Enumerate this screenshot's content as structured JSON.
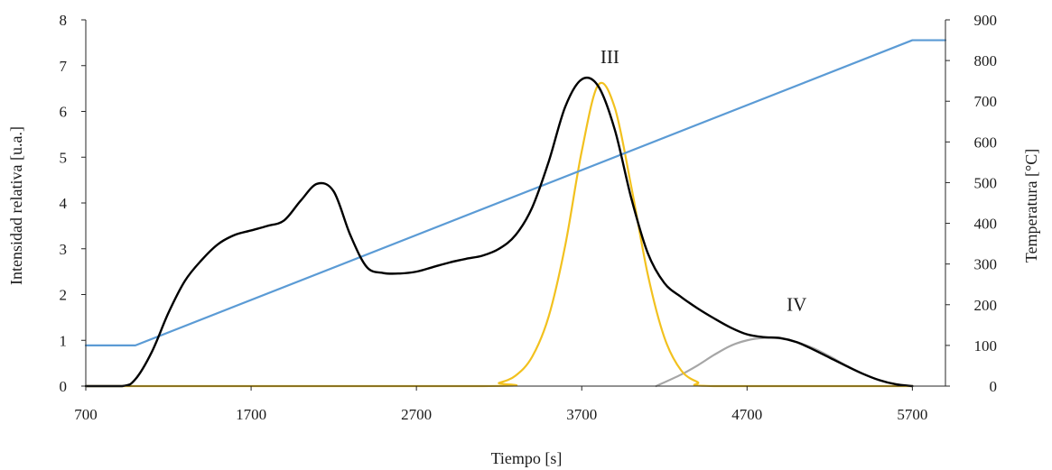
{
  "chart_data": {
    "type": "line",
    "xlabel": "Tiempo [s]",
    "ylabel": "Intensidad relativa  [u.a.]",
    "y2label": "Temperatura [°C]",
    "xlim": [
      700,
      5900
    ],
    "ylim": [
      0,
      8
    ],
    "y2lim": [
      0,
      900
    ],
    "xticks": [
      "700",
      "1700",
      "2700",
      "3700",
      "4700",
      "5700"
    ],
    "yticks": [
      "0",
      "1",
      "2",
      "3",
      "4",
      "5",
      "6",
      "7",
      "8"
    ],
    "y2ticks": [
      "0",
      "100",
      "200",
      "300",
      "400",
      "500",
      "600",
      "700",
      "800",
      "900"
    ],
    "grid": false,
    "legend": "none",
    "annotations": [
      {
        "text": "III",
        "x": 3870,
        "y": 7.05
      },
      {
        "text": "IV",
        "x": 5000,
        "y": 1.65
      }
    ],
    "series": [
      {
        "color": "#000000",
        "axis": "left",
        "x": [
          700,
          920,
          1000,
          1100,
          1200,
          1300,
          1400,
          1500,
          1600,
          1700,
          1800,
          1900,
          2000,
          2100,
          2200,
          2300,
          2400,
          2500,
          2600,
          2700,
          2800,
          2900,
          3000,
          3100,
          3200,
          3300,
          3400,
          3500,
          3600,
          3700,
          3800,
          3900,
          4000,
          4100,
          4200,
          4300,
          4400,
          4500,
          4600,
          4700,
          4800,
          4900,
          5000,
          5100,
          5200,
          5300,
          5400,
          5500,
          5600,
          5700
        ],
        "values": [
          0,
          0,
          0.15,
          0.75,
          1.6,
          2.3,
          2.75,
          3.1,
          3.3,
          3.4,
          3.5,
          3.62,
          4.05,
          4.42,
          4.25,
          3.3,
          2.6,
          2.47,
          2.46,
          2.5,
          2.6,
          2.7,
          2.78,
          2.85,
          3.0,
          3.3,
          3.9,
          4.9,
          6.1,
          6.7,
          6.55,
          5.6,
          4.1,
          2.9,
          2.25,
          1.95,
          1.7,
          1.48,
          1.28,
          1.13,
          1.07,
          1.05,
          0.96,
          0.8,
          0.62,
          0.44,
          0.27,
          0.13,
          0.04,
          0.0
        ]
      },
      {
        "color": "#f2c11e",
        "axis": "left",
        "x": [
          700,
          3100,
          3200,
          3300,
          3400,
          3500,
          3600,
          3700,
          3800,
          3900,
          4000,
          4100,
          4200,
          4300,
          4400,
          4500,
          5700
        ],
        "values": [
          0,
          0.0,
          0.07,
          0.23,
          0.64,
          1.52,
          3.07,
          5.13,
          6.58,
          6.08,
          4.35,
          2.43,
          1.06,
          0.35,
          0.09,
          0.0,
          0
        ]
      },
      {
        "color": "#a6a6a6",
        "axis": "left",
        "x": [
          4150,
          4300,
          4400,
          4500,
          4600,
          4700,
          4800,
          4900,
          5000,
          5100,
          5200,
          5300,
          5400,
          5500,
          5600,
          5700
        ],
        "values": [
          0,
          0.25,
          0.45,
          0.68,
          0.88,
          1.0,
          1.05,
          1.04,
          0.96,
          0.83,
          0.65,
          0.45,
          0.27,
          0.13,
          0.04,
          0.0
        ]
      },
      {
        "color": "#5b9bd5",
        "axis": "right",
        "x": [
          700,
          1000,
          5700,
          5900
        ],
        "values": [
          100,
          100,
          850,
          850
        ]
      }
    ]
  }
}
